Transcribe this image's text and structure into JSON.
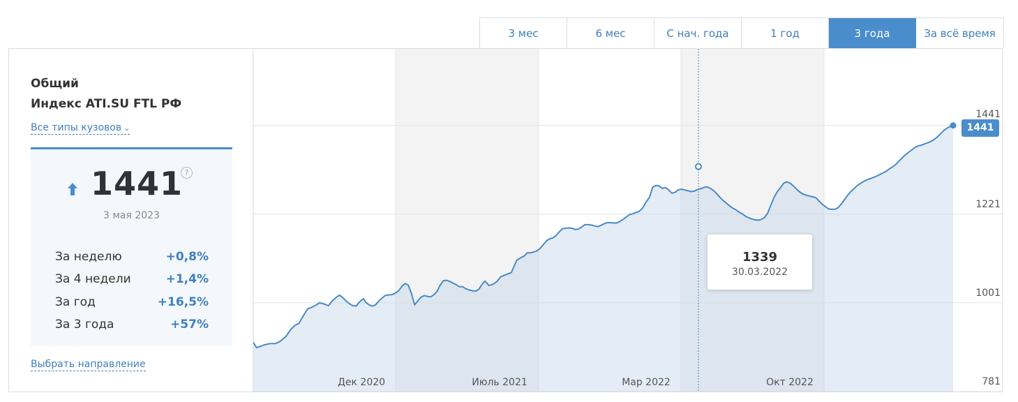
{
  "tabs": [
    {
      "label": "3 мес",
      "active": false
    },
    {
      "label": "6 мес",
      "active": false
    },
    {
      "label": "С нач. года",
      "active": false
    },
    {
      "label": "1 год",
      "active": false
    },
    {
      "label": "3 года",
      "active": true
    },
    {
      "label": "За всё время",
      "active": false
    }
  ],
  "panel": {
    "title_line1": "Общий",
    "title_line2": "Индекс ATI.SU FTL РФ",
    "body_types_link": "Все типы кузовов",
    "value": "1441",
    "help": "?",
    "date": "3 мая 2023",
    "changes": [
      {
        "label": "За неделю",
        "value": "+0,8%"
      },
      {
        "label": "За 4 недели",
        "value": "+1,4%"
      },
      {
        "label": "За год",
        "value": "+16,5%"
      },
      {
        "label": "За 3 года",
        "value": "+57%"
      }
    ],
    "direction_link": "Выбрать направление"
  },
  "tooltip": {
    "value": "1339",
    "date": "30.03.2022"
  },
  "last_badge": "1441",
  "colors": {
    "accent": "#4a8dcc",
    "line": "#4a8ac6",
    "area": "#e6eef6",
    "band": "#f3f3f3"
  },
  "chart_data": {
    "type": "area",
    "x_ticks": [
      "Дек 2020",
      "Июль 2021",
      "Мар 2022",
      "Окт 2022"
    ],
    "y_ticks": [
      781,
      1001,
      1221,
      1441
    ],
    "ylim": [
      781,
      1631
    ],
    "highlight": {
      "date": "30.03.2022",
      "value": 1339
    },
    "points": [
      [
        0,
        903
      ],
      [
        4,
        890
      ],
      [
        9,
        893
      ],
      [
        14,
        897
      ],
      [
        21,
        900
      ],
      [
        28,
        900
      ],
      [
        34,
        906
      ],
      [
        41,
        918
      ],
      [
        47,
        935
      ],
      [
        52,
        945
      ],
      [
        57,
        950
      ],
      [
        63,
        970
      ],
      [
        68,
        986
      ],
      [
        73,
        990
      ],
      [
        78,
        995
      ],
      [
        83,
        1001
      ],
      [
        89,
        998
      ],
      [
        94,
        994
      ],
      [
        99,
        1006
      ],
      [
        104,
        1015
      ],
      [
        108,
        1020
      ],
      [
        112,
        1014
      ],
      [
        116,
        1006
      ],
      [
        121,
        998
      ],
      [
        125,
        994
      ],
      [
        129,
        993
      ],
      [
        132,
        1001
      ],
      [
        135,
        1007
      ],
      [
        138,
        1011
      ],
      [
        141,
        1002
      ],
      [
        145,
        996
      ],
      [
        149,
        993
      ],
      [
        153,
        996
      ],
      [
        156,
        1003
      ],
      [
        160,
        1011
      ],
      [
        165,
        1019
      ],
      [
        170,
        1021
      ],
      [
        173,
        1021
      ],
      [
        177,
        1024
      ],
      [
        182,
        1031
      ],
      [
        186,
        1042
      ],
      [
        190,
        1049
      ],
      [
        194,
        1045
      ],
      [
        198,
        1024
      ],
      [
        202,
        996
      ],
      [
        206,
        1006
      ],
      [
        210,
        1015
      ],
      [
        214,
        1019
      ],
      [
        218,
        1017
      ],
      [
        222,
        1016
      ],
      [
        226,
        1021
      ],
      [
        230,
        1029
      ],
      [
        234,
        1045
      ],
      [
        238,
        1056
      ],
      [
        242,
        1057
      ],
      [
        246,
        1054
      ],
      [
        250,
        1050
      ],
      [
        254,
        1046
      ],
      [
        258,
        1041
      ],
      [
        262,
        1041
      ],
      [
        266,
        1036
      ],
      [
        270,
        1033
      ],
      [
        274,
        1031
      ],
      [
        278,
        1030
      ],
      [
        282,
        1034
      ],
      [
        286,
        1046
      ],
      [
        290,
        1055
      ],
      [
        295,
        1044
      ],
      [
        300,
        1047
      ],
      [
        305,
        1054
      ],
      [
        310,
        1066
      ],
      [
        315,
        1070
      ],
      [
        319,
        1073
      ],
      [
        323,
        1076
      ],
      [
        326,
        1090
      ],
      [
        330,
        1107
      ],
      [
        335,
        1113
      ],
      [
        339,
        1117
      ],
      [
        343,
        1125
      ],
      [
        347,
        1125
      ],
      [
        351,
        1127
      ],
      [
        355,
        1130
      ],
      [
        359,
        1136
      ],
      [
        363,
        1145
      ],
      [
        367,
        1155
      ],
      [
        371,
        1160
      ],
      [
        375,
        1162
      ],
      [
        379,
        1168
      ],
      [
        383,
        1177
      ],
      [
        387,
        1185
      ],
      [
        391,
        1186
      ],
      [
        395,
        1187
      ],
      [
        399,
        1186
      ],
      [
        403,
        1183
      ],
      [
        407,
        1184
      ],
      [
        411,
        1189
      ],
      [
        415,
        1195
      ],
      [
        419,
        1195
      ],
      [
        423,
        1194
      ],
      [
        427,
        1192
      ],
      [
        431,
        1190
      ],
      [
        435,
        1193
      ],
      [
        439,
        1197
      ],
      [
        443,
        1200
      ],
      [
        447,
        1200
      ],
      [
        451,
        1199
      ],
      [
        455,
        1199
      ],
      [
        459,
        1203
      ],
      [
        463,
        1208
      ],
      [
        467,
        1214
      ],
      [
        471,
        1220
      ],
      [
        475,
        1222
      ],
      [
        479,
        1225
      ],
      [
        483,
        1228
      ],
      [
        487,
        1235
      ],
      [
        491,
        1249
      ],
      [
        496,
        1263
      ],
      [
        500,
        1288
      ],
      [
        504,
        1292
      ],
      [
        508,
        1291
      ],
      [
        512,
        1285
      ],
      [
        516,
        1287
      ],
      [
        520,
        1281
      ],
      [
        524,
        1273
      ],
      [
        528,
        1275
      ],
      [
        532,
        1281
      ],
      [
        536,
        1283
      ],
      [
        540,
        1281
      ],
      [
        544,
        1279
      ],
      [
        548,
        1277
      ],
      [
        552,
        1278
      ],
      [
        556,
        1282
      ],
      [
        560,
        1284
      ],
      [
        564,
        1287
      ],
      [
        568,
        1289
      ],
      [
        572,
        1285
      ],
      [
        576,
        1280
      ],
      [
        580,
        1272
      ],
      [
        584,
        1263
      ],
      [
        588,
        1255
      ],
      [
        592,
        1249
      ],
      [
        596,
        1242
      ],
      [
        600,
        1236
      ],
      [
        604,
        1232
      ],
      [
        608,
        1226
      ],
      [
        612,
        1222
      ],
      [
        616,
        1216
      ],
      [
        620,
        1212
      ],
      [
        624,
        1209
      ],
      [
        628,
        1207
      ],
      [
        632,
        1206
      ],
      [
        636,
        1208
      ],
      [
        640,
        1213
      ],
      [
        644,
        1224
      ],
      [
        648,
        1244
      ],
      [
        652,
        1263
      ],
      [
        656,
        1277
      ],
      [
        660,
        1287
      ],
      [
        664,
        1298
      ],
      [
        668,
        1301
      ],
      [
        672,
        1298
      ],
      [
        676,
        1291
      ],
      [
        680,
        1283
      ],
      [
        684,
        1276
      ],
      [
        688,
        1271
      ],
      [
        692,
        1268
      ],
      [
        696,
        1266
      ],
      [
        700,
        1264
      ],
      [
        704,
        1262
      ],
      [
        708,
        1254
      ],
      [
        712,
        1246
      ],
      [
        716,
        1240
      ],
      [
        720,
        1234
      ],
      [
        724,
        1233
      ],
      [
        728,
        1233
      ],
      [
        732,
        1237
      ],
      [
        736,
        1246
      ],
      [
        740,
        1257
      ],
      [
        744,
        1268
      ],
      [
        748,
        1277
      ],
      [
        752,
        1284
      ],
      [
        756,
        1292
      ],
      [
        760,
        1297
      ],
      [
        764,
        1302
      ],
      [
        768,
        1306
      ],
      [
        772,
        1309
      ],
      [
        776,
        1312
      ],
      [
        780,
        1315
      ],
      [
        784,
        1319
      ],
      [
        788,
        1323
      ],
      [
        792,
        1327
      ],
      [
        796,
        1333
      ],
      [
        800,
        1338
      ],
      [
        804,
        1344
      ],
      [
        808,
        1352
      ],
      [
        812,
        1360
      ],
      [
        816,
        1368
      ],
      [
        820,
        1374
      ],
      [
        824,
        1380
      ],
      [
        828,
        1386
      ],
      [
        832,
        1390
      ],
      [
        836,
        1392
      ],
      [
        840,
        1395
      ],
      [
        844,
        1398
      ],
      [
        848,
        1401
      ],
      [
        852,
        1406
      ],
      [
        856,
        1412
      ],
      [
        860,
        1420
      ],
      [
        864,
        1428
      ],
      [
        868,
        1434
      ],
      [
        872,
        1438
      ],
      [
        876,
        1441
      ]
    ]
  }
}
